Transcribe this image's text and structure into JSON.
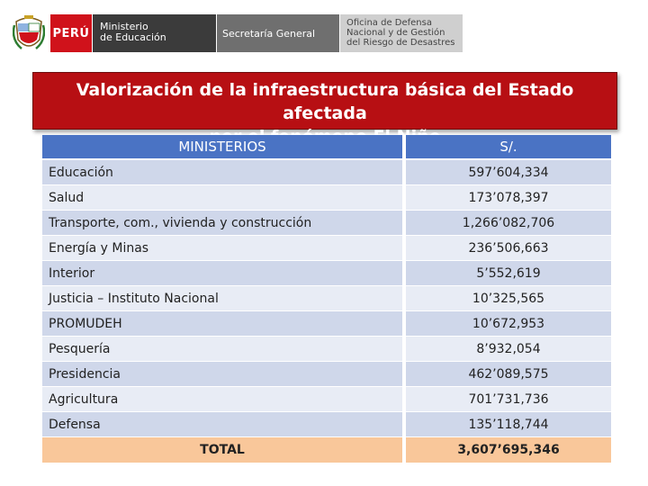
{
  "header": {
    "crest_icon": "peru-coat-of-arms-icon",
    "peru_label": "PERÚ",
    "ministerio_line1": "Ministerio",
    "ministerio_line2": "de Educación",
    "secretaria_label": "Secretaría General",
    "oficina_line1": "Oficina de Defensa",
    "oficina_line2": "Nacional y de Gestión",
    "oficina_line3": "del Riesgo de Desastres",
    "colors": {
      "peru_red": "#d0121b",
      "ministerio_dark": "#3b3b3b",
      "secretaria_gray": "#6f6f6f",
      "oficina_light": "#cfcfcf"
    }
  },
  "title": {
    "line1": "Valorización de la infraestructura básica del Estado afectada",
    "line2": "por el fenómeno El Niño",
    "color": "#b70f13"
  },
  "table": {
    "header_name": "MINISTERIOS",
    "header_value": "S/.",
    "header_color": "#4a73c4",
    "rows": [
      {
        "name": "Educación",
        "value": "597’604,334"
      },
      {
        "name": "Salud",
        "value": "173’078,397"
      },
      {
        "name": "Transporte, com., vivienda y construcción",
        "value": "1,266’082,706"
      },
      {
        "name": "Energía y Minas",
        "value": "236’506,663"
      },
      {
        "name": "Interior",
        "value": "5’552,619"
      },
      {
        "name": "Justicia – Instituto Nacional",
        "value": "10’325,565"
      },
      {
        "name": "PROMUDEH",
        "value": "10’672,953"
      },
      {
        "name": "Pesquería",
        "value": "8’932,054"
      },
      {
        "name": "Presidencia",
        "value": "462’089,575"
      },
      {
        "name": "Agricultura",
        "value": "701’731,736"
      },
      {
        "name": "Defensa",
        "value": "135’118,744"
      }
    ],
    "total_label": "TOTAL",
    "total_value": "3,607’695,346",
    "total_color": "#f9c79a"
  }
}
